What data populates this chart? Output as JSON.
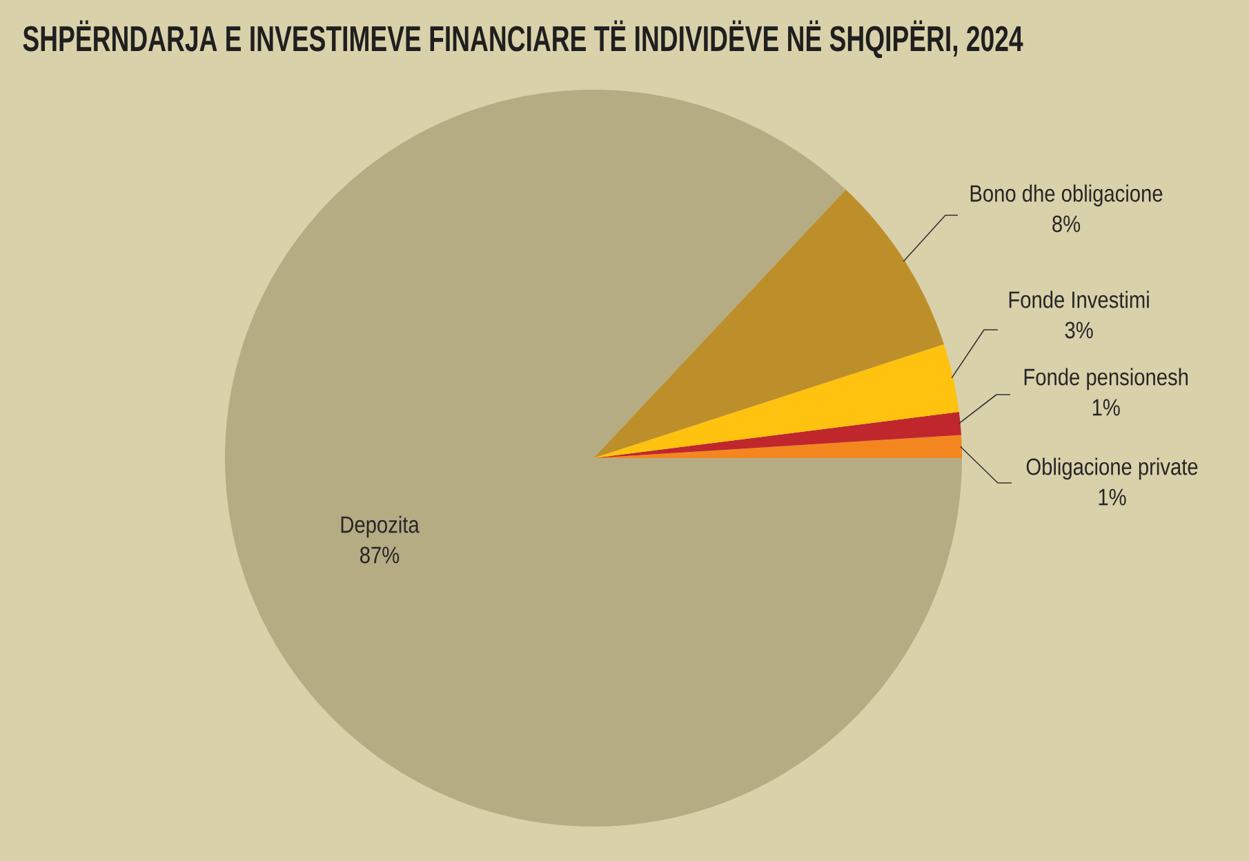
{
  "chart_data": {
    "type": "pie",
    "title": "SHPËRNDARJA E INVESTIMEVE FINANCIARE TË INDIVIDËVE NË SHQIPËRI, 2024",
    "categories": [
      "Obligacione private",
      "Fonde pensionesh",
      "Fonde Investimi",
      "Bono dhe obligacione",
      "Depozita"
    ],
    "values": [
      1,
      1,
      3,
      8,
      87
    ],
    "value_labels": [
      "1%",
      "1%",
      "3%",
      "8%",
      "87%"
    ],
    "colors": [
      "#f4861f",
      "#c0272d",
      "#ffc20f",
      "#bd8f2a",
      "#b5ac84"
    ]
  }
}
